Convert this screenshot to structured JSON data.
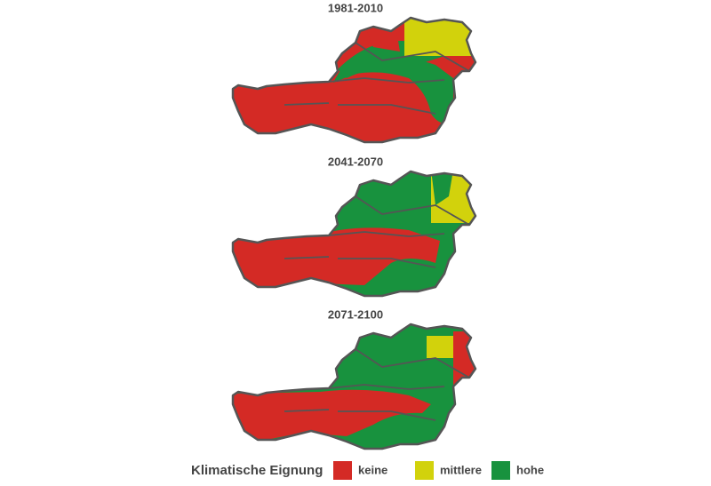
{
  "panels": [
    {
      "title": "1981-2010"
    },
    {
      "title": "2041-2070"
    },
    {
      "title": "2071-2100"
    }
  ],
  "legend": {
    "title": "Klimatische Eignung",
    "items": [
      {
        "label": "keine",
        "color": "#d42a25"
      },
      {
        "label": "mittlere",
        "color": "#d2d20c"
      },
      {
        "label": "hohe",
        "color": "#18923e"
      }
    ]
  }
}
